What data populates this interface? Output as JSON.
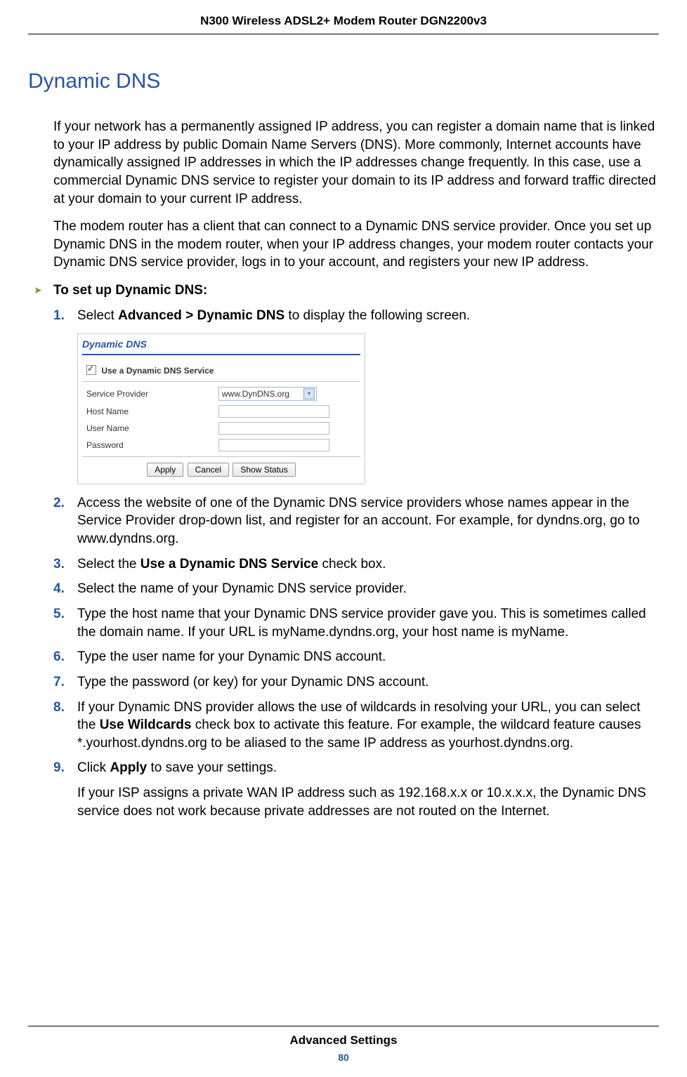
{
  "header": {
    "title": "N300 Wireless ADSL2+ Modem Router DGN2200v3"
  },
  "section": {
    "title": "Dynamic DNS"
  },
  "paragraphs": {
    "p1": "If your network has a permanently assigned IP address, you can register a domain name that is linked to your IP address by public Domain Name Servers (DNS). More commonly, Internet accounts have dynamically assigned IP addresses in which the IP addresses change frequently. In this case, use a commercial Dynamic DNS service to register your domain to its IP address and forward traffic directed at your domain to your current IP address.",
    "p2": "The modem router has a client that can connect to a Dynamic DNS service provider. Once you set up Dynamic DNS in the modem router, when your IP address changes, your modem router contacts your Dynamic DNS service provider, logs in to your account, and registers your new IP address."
  },
  "procedure": {
    "heading": "To set up Dynamic DNS:"
  },
  "steps": {
    "s1_num": "1.",
    "s1_pre": "Select ",
    "s1_bold": "Advanced > Dynamic DNS",
    "s1_post": " to display the following screen.",
    "s2_num": "2.",
    "s2_text": "Access the website of one of the Dynamic DNS service providers whose names appear in the Service Provider drop-down list, and register for an account. For example, for dyndns.org, go to www.dyndns.org.",
    "s3_num": "3.",
    "s3_pre": "Select the ",
    "s3_bold": "Use a Dynamic DNS Service",
    "s3_post": " check box.",
    "s4_num": "4.",
    "s4_text": "Select the name of your Dynamic DNS service provider.",
    "s5_num": "5.",
    "s5_text": "Type the host name that your Dynamic DNS service provider gave you. This is sometimes called the domain name. If your URL is myName.dyndns.org, your host name is myName.",
    "s6_num": "6.",
    "s6_text": "Type the user name for your Dynamic DNS account.",
    "s7_num": "7.",
    "s7_text": "Type the password (or key) for your Dynamic DNS account.",
    "s8_num": "8.",
    "s8_pre": "If your Dynamic DNS provider allows the use of wildcards in resolving your URL, you can select the ",
    "s8_bold": "Use Wildcards",
    "s8_post": " check box to activate this feature. For example, the wildcard feature causes *.yourhost.dyndns.org to be aliased to the same IP address as yourhost.dyndns.org.",
    "s9_num": "9.",
    "s9_pre": "Click ",
    "s9_bold": "Apply",
    "s9_post": " to save your settings.",
    "s9_detail": "If your ISP assigns a private WAN IP address such as 192.168.x.x or 10.x.x.x, the Dynamic DNS service does not work because private addresses are not routed on the Internet."
  },
  "ui": {
    "panel_title": "Dynamic DNS",
    "checkbox_label": "Use a Dynamic DNS Service",
    "service_provider_label": "Service Provider",
    "service_provider_value": "www.DynDNS.org",
    "host_name_label": "Host Name",
    "user_name_label": "User Name",
    "password_label": "Password",
    "btn_apply": "Apply",
    "btn_cancel": "Cancel",
    "btn_show_status": "Show Status"
  },
  "footer": {
    "text": "Advanced Settings",
    "page": "80"
  },
  "colors": {
    "link_blue": "#2754a5",
    "arrow_green": "#6b9c3a"
  }
}
